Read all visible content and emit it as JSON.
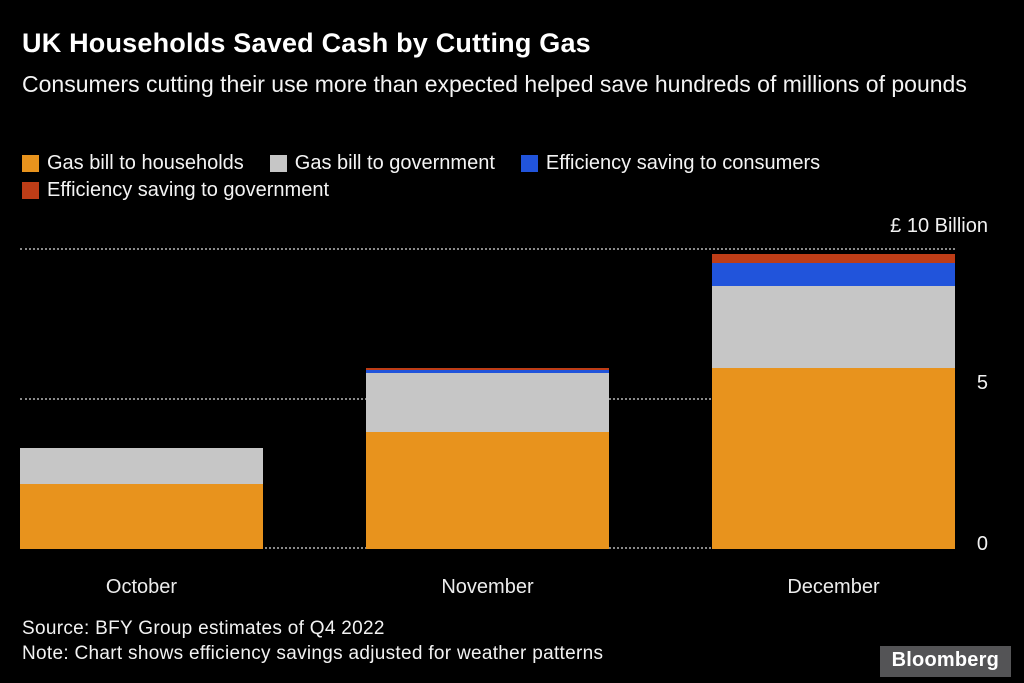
{
  "header": {
    "title": "UK Households Saved Cash by Cutting Gas",
    "subtitle": "Consumers cutting their use more than expected helped save hundreds of millions of pounds"
  },
  "chart_data": {
    "type": "bar",
    "stacked": true,
    "categories": [
      "October",
      "November",
      "December"
    ],
    "series": [
      {
        "name": "Gas bill to households",
        "color": "#E8931D",
        "values": [
          2.15,
          3.9,
          6.0
        ]
      },
      {
        "name": "Gas bill to government",
        "color": "#C6C6C6",
        "values": [
          1.2,
          1.95,
          2.75
        ]
      },
      {
        "name": "Efficiency saving to consumers",
        "color": "#2154DB",
        "values": [
          0,
          0.1,
          0.75
        ]
      },
      {
        "name": "Efficiency saving to government",
        "color": "#BE3D17",
        "values": [
          0,
          0.05,
          0.3
        ]
      }
    ],
    "ylim": [
      0,
      10
    ],
    "yticks": [
      0,
      5,
      10
    ],
    "tick_labels": {
      "top": "£ 10 Billion",
      "mid": "5",
      "bottom": "0"
    },
    "grid": "dotted horizontal",
    "legend_position": "top"
  },
  "footer": {
    "source": "Source: BFY Group estimates of Q4 2022",
    "note": "Note: Chart shows efficiency savings adjusted for weather patterns",
    "brand": "Bloomberg"
  }
}
